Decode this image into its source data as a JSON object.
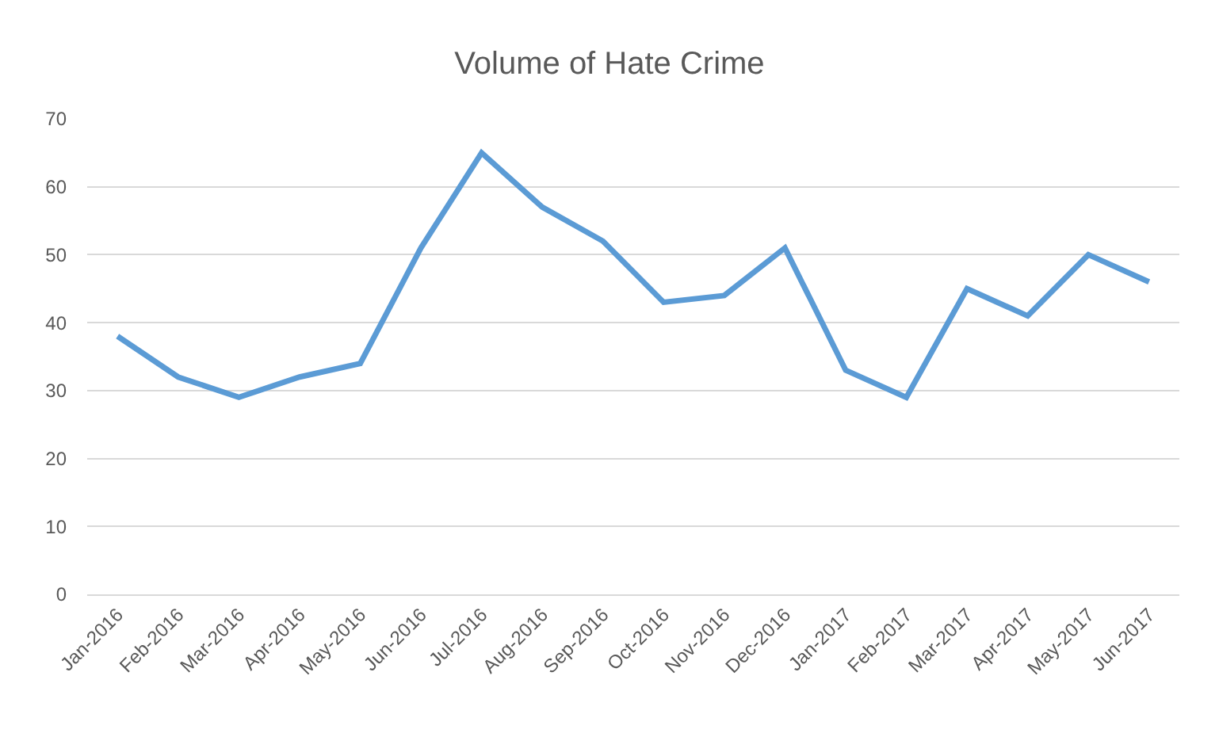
{
  "chart_data": {
    "type": "line",
    "title": "Volume of Hate Crime",
    "categories": [
      "Jan-2016",
      "Feb-2016",
      "Mar-2016",
      "Apr-2016",
      "May-2016",
      "Jun-2016",
      "Jul-2016",
      "Aug-2016",
      "Sep-2016",
      "Oct-2016",
      "Nov-2016",
      "Dec-2016",
      "Jan-2017",
      "Feb-2017",
      "Mar-2017",
      "Apr-2017",
      "May-2017",
      "Jun-2017"
    ],
    "series": [
      {
        "color": "#5b9bd5",
        "values": [
          38,
          32,
          29,
          32,
          34,
          51,
          65,
          57,
          52,
          43,
          44,
          51,
          33,
          29,
          45,
          41,
          50,
          46
        ]
      }
    ],
    "ylim": [
      0,
      70
    ],
    "yticks": [
      0,
      10,
      20,
      30,
      40,
      50,
      60,
      70
    ],
    "grid": "y",
    "legend": false,
    "marker": "none",
    "line_style": "solid"
  }
}
